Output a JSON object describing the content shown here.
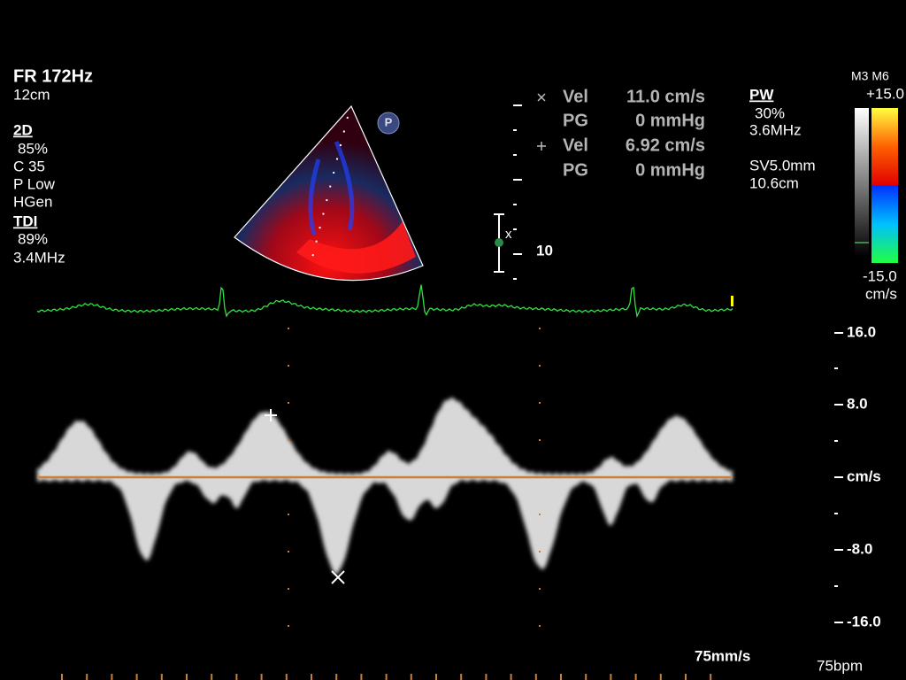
{
  "header": {
    "frame_rate": "FR 172Hz",
    "depth": "12cm"
  },
  "left_panel": {
    "mode_2d": "2D",
    "gain_2d": "85%",
    "compression": "C 35",
    "power": "P Low",
    "frequency_mode": "HGen",
    "mode_tdi": "TDI",
    "gain_tdi": "89%",
    "frequency": "3.4MHz"
  },
  "measurements": [
    {
      "label": "Vel",
      "value": "11.0 cm/s"
    },
    {
      "label": "PG",
      "value": "0 mmHg"
    },
    {
      "label": "Vel",
      "value": "6.92 cm/s"
    },
    {
      "label": "PG",
      "value": "0 mmHg"
    }
  ],
  "pw_panel": {
    "mode": "PW",
    "gain": "30%",
    "frequency": "3.6MHz",
    "sample_volume": "SV5.0mm",
    "gate_depth": "10.6cm"
  },
  "color_bar": {
    "maps": "M3 M6",
    "max": "+15.0",
    "min": "-15.0",
    "unit": "cm/s"
  },
  "probe_icon": "P",
  "depth_marker": "10",
  "gate_marker": "x",
  "velocity_scale": [
    "16.0",
    "8.0",
    "cm/s",
    "-8.0",
    "-16.0"
  ],
  "sweep_speed": "75mm/s",
  "heart_rate": "75bpm"
}
